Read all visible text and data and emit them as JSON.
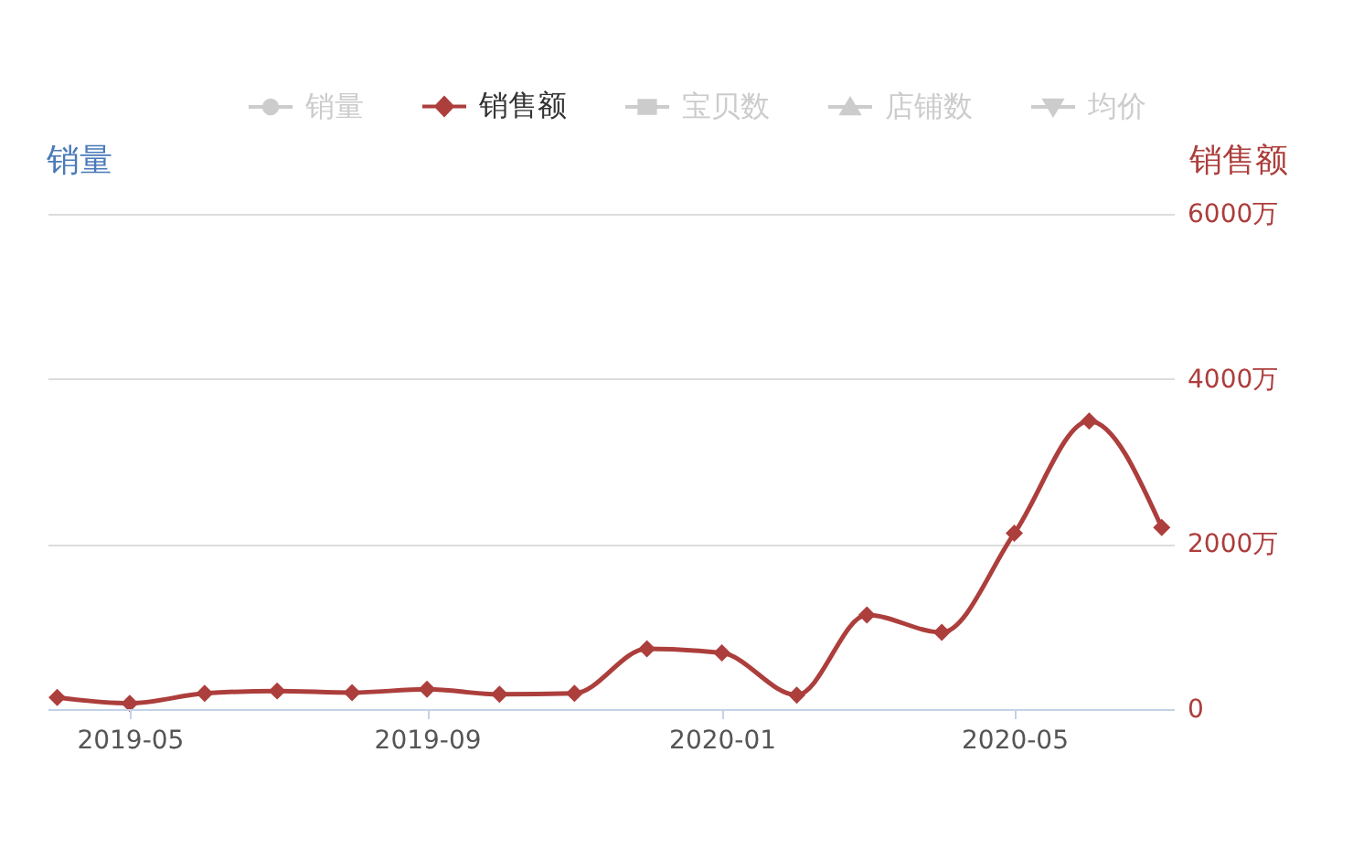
{
  "chart_data": {
    "type": "line",
    "legend": "top",
    "grid": "y",
    "ylabel": "销量",
    "y2label": "销售额",
    "x": [
      "2019-04",
      "2019-05",
      "2019-06",
      "2019-07",
      "2019-08",
      "2019-09",
      "2019-10",
      "2019-11",
      "2019-12",
      "2020-01",
      "2020-02",
      "2020-03",
      "2020-04",
      "2020-05",
      "2020-06",
      "2020-07"
    ],
    "xlim": [
      "2019-03-28",
      "2020-07-06"
    ],
    "xticks": [
      "2019-05",
      "2019-09",
      "2020-01",
      "2020-05"
    ],
    "y2lim": [
      0,
      6000
    ],
    "y2ticks": [
      0,
      {
        "value": 2000,
        "label": "2000万"
      },
      {
        "value": 4000,
        "label": "4000万"
      },
      {
        "value": 6000,
        "label": "6000万"
      }
    ],
    "series": [
      {
        "name": "销量",
        "color": "#cccccc",
        "marker": "circle",
        "values": [
          null,
          null,
          null,
          null,
          null,
          null,
          null,
          null,
          null,
          null,
          null,
          null,
          null,
          null,
          null,
          null
        ]
      },
      {
        "name": "销售额",
        "color": "#ac3e3c",
        "marker": "diamond",
        "axis": "y2",
        "values": [
          140,
          70,
          190,
          220,
          200,
          240,
          180,
          190,
          730,
          680,
          170,
          1140,
          930,
          2130,
          3490,
          2200
        ]
      },
      {
        "name": "宝贝数",
        "color": "#cccccc",
        "marker": "square",
        "values": [
          null,
          null,
          null,
          null,
          null,
          null,
          null,
          null,
          null,
          null,
          null,
          null,
          null,
          null,
          null,
          null
        ]
      },
      {
        "name": "店铺数",
        "color": "#cccccc",
        "marker": "triangle",
        "values": [
          null,
          null,
          null,
          null,
          null,
          null,
          null,
          null,
          null,
          null,
          null,
          null,
          null,
          null,
          null,
          null
        ]
      },
      {
        "name": "均价",
        "color": "#cccccc",
        "marker": "triangle-down",
        "values": [
          null,
          null,
          null,
          null,
          null,
          null,
          null,
          null,
          null,
          null,
          null,
          null,
          null,
          null,
          null,
          null
        ]
      }
    ]
  }
}
